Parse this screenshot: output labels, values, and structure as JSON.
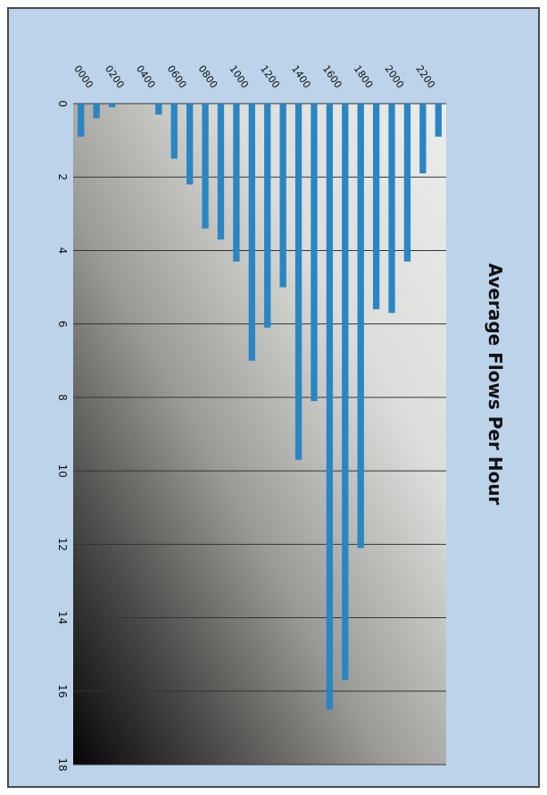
{
  "chart_data": {
    "type": "bar",
    "orientation": "rotated 90 degrees clockwise",
    "title": "Average Flows Per Hour",
    "xlabel": "",
    "ylabel": "",
    "categories": [
      "0000",
      "0100",
      "0200",
      "0300",
      "0400",
      "0500",
      "0600",
      "0700",
      "0800",
      "0900",
      "1000",
      "1100",
      "1200",
      "1300",
      "1400",
      "1500",
      "1600",
      "1700",
      "1800",
      "1900",
      "2000",
      "2100",
      "2200",
      "2300"
    ],
    "category_tick_labels": [
      "0000",
      "0200",
      "0400",
      "0600",
      "0800",
      "1000",
      "1200",
      "1400",
      "1600",
      "1800",
      "2000",
      "2200"
    ],
    "values": [
      0.9,
      0.4,
      0.1,
      0,
      0,
      0.3,
      1.5,
      2.2,
      3.4,
      3.7,
      4.3,
      7.0,
      6.1,
      5.0,
      9.7,
      8.1,
      16.5,
      15.7,
      12.1,
      5.6,
      5.7,
      4.3,
      1.9,
      0.9
    ],
    "ylim": [
      0,
      18
    ],
    "yticks": [
      0,
      2,
      4,
      6,
      8,
      10,
      12,
      14,
      16,
      18
    ],
    "grid": true,
    "legend": "none",
    "colors": {
      "bar": "#2a86c2",
      "frame_background": "#bcd3ea",
      "grid": "#333333"
    }
  }
}
